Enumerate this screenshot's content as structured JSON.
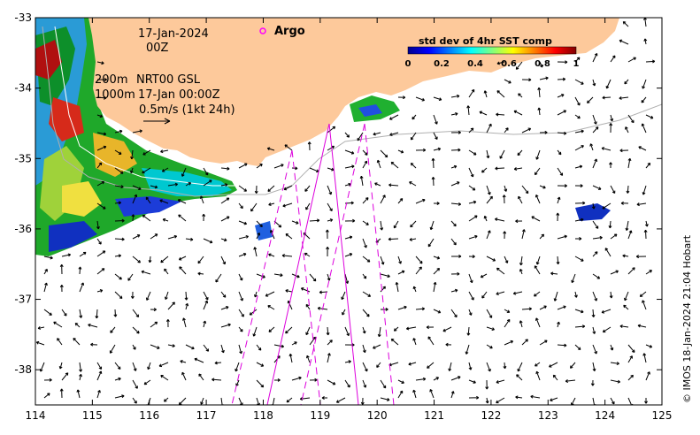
{
  "map": {
    "lon_range": [
      114,
      125
    ],
    "lat_range": [
      -38.5,
      -33
    ],
    "lon_ticks": [
      114,
      115,
      116,
      117,
      118,
      119,
      120,
      121,
      122,
      123,
      124,
      125
    ],
    "lat_ticks": [
      -33,
      -34,
      -35,
      -36,
      -37,
      -38
    ],
    "lon_tick_labels": [
      "114",
      "115",
      "116",
      "117",
      "118",
      "119",
      "120",
      "121",
      "122",
      "123",
      "124",
      "125"
    ],
    "lat_tick_labels": [
      "-33",
      "-34",
      "-35",
      "-36",
      "-37",
      "-38"
    ],
    "land_color": "#fdc99b",
    "contour_color_ocean": "#a0a0a0",
    "contour_color_sst": "#ffffff",
    "track_color": "#dd00dd"
  },
  "annotations": {
    "date": "17-Jan-2024",
    "time": "00Z",
    "depth_200": "200m",
    "depth_1000": "1000m",
    "product": "NRT00 GSL",
    "product_time": "17-Jan 00:00Z",
    "scale_vector": "0.5m/s (1kt 24h)",
    "argo_label": "Argo",
    "argo_color": "#ff00ff"
  },
  "colorbar": {
    "title": "std dev of 4hr SST comp",
    "tick_labels": [
      "0",
      "0.2",
      "0.4",
      "0.6",
      "0.8",
      "1"
    ],
    "range": [
      0,
      1
    ],
    "colormap": "jet"
  },
  "credit": "© IMOS 18-Jan-2024 21:04 Hobart"
}
